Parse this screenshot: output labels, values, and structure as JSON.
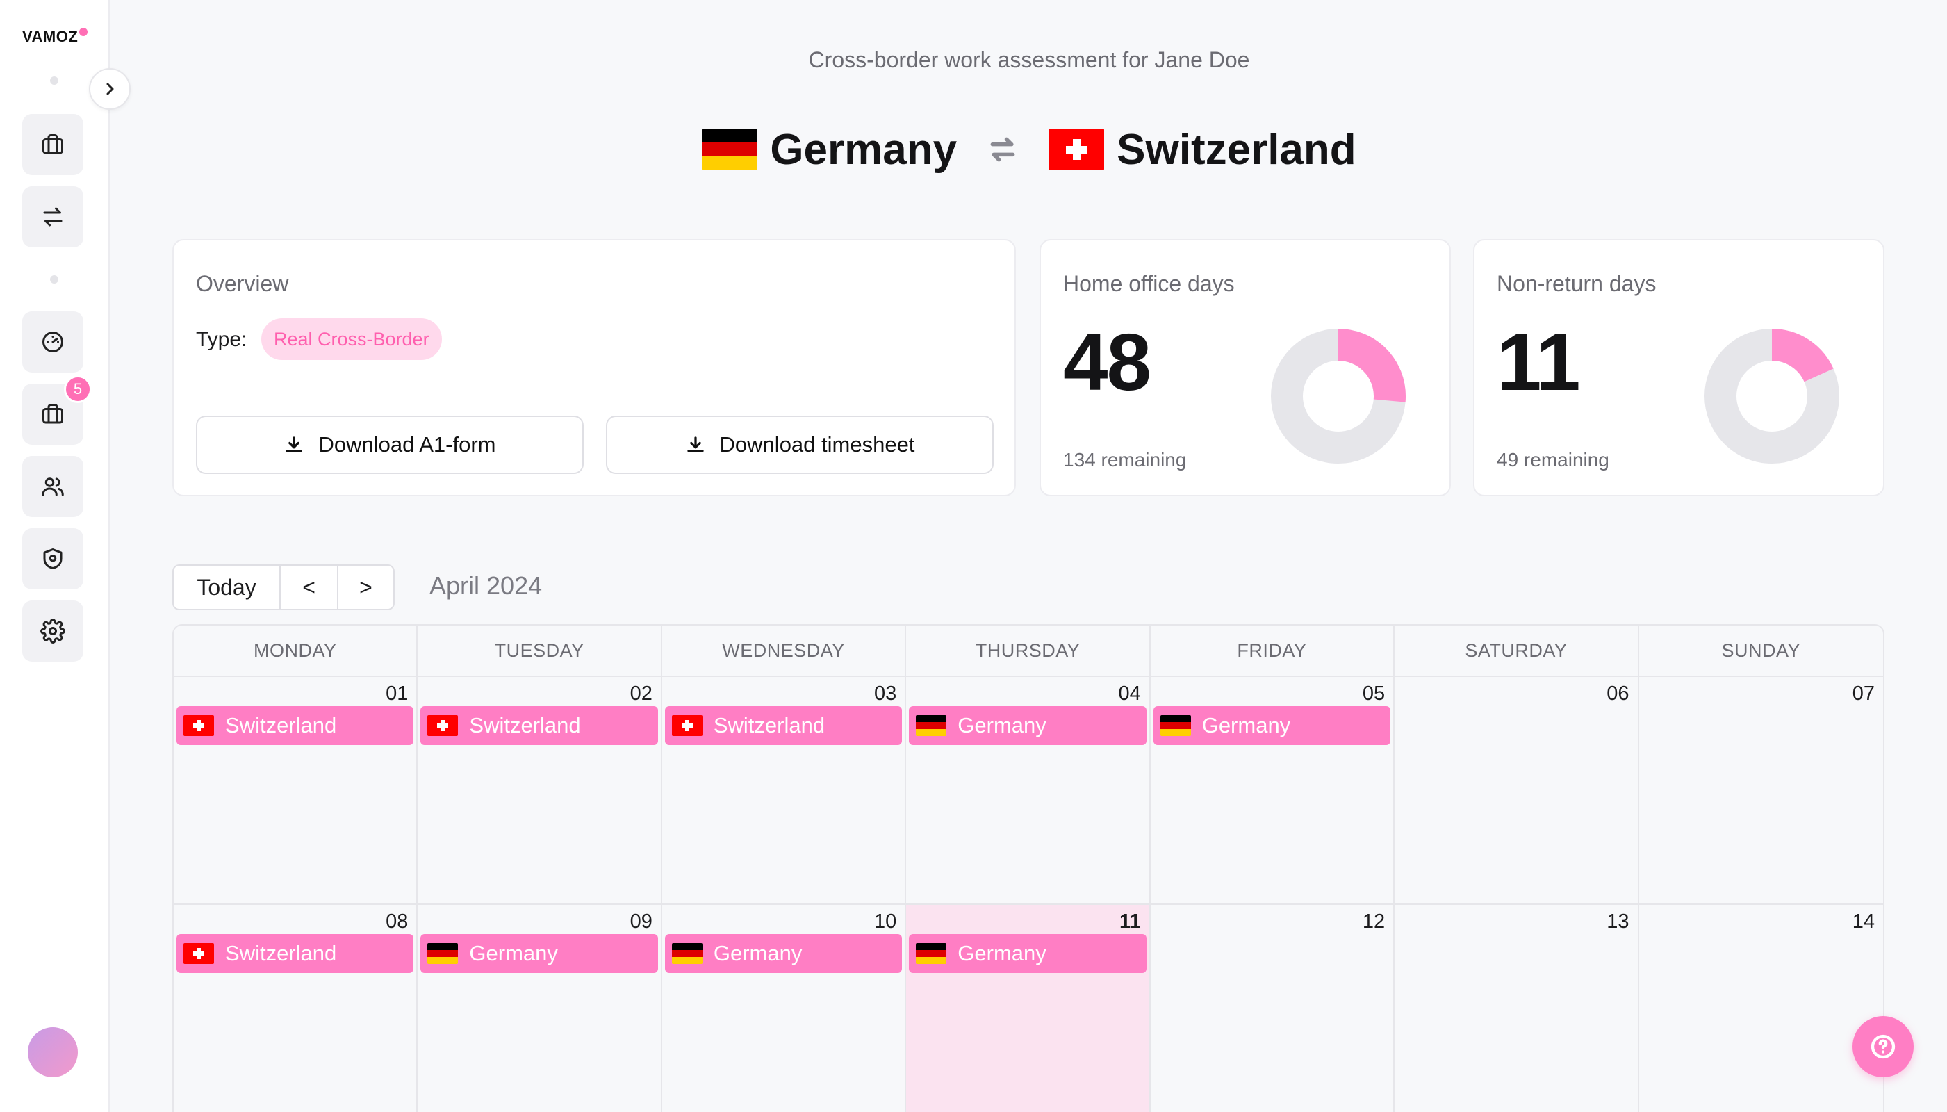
{
  "app": {
    "logo_text": "VAMOZ"
  },
  "sidebar": {
    "notification_count": "5",
    "items": [
      {
        "icon": "briefcase-icon"
      },
      {
        "icon": "swap-icon"
      },
      {
        "icon": "dashboard-icon"
      },
      {
        "icon": "briefcase-icon"
      },
      {
        "icon": "users-icon"
      },
      {
        "icon": "shield-icon"
      },
      {
        "icon": "gear-icon"
      }
    ]
  },
  "header": {
    "subtitle": "Cross-border work assessment for Jane Doe",
    "from_country": "Germany",
    "to_country": "Switzerland"
  },
  "overview": {
    "title": "Overview",
    "type_label": "Type:",
    "type_value": "Real Cross-Border",
    "download_a1": "Download A1-form",
    "download_timesheet": "Download timesheet"
  },
  "home_office": {
    "title": "Home office days",
    "value": "48",
    "remaining": "134 remaining",
    "fraction_used": 0.264
  },
  "non_return": {
    "title": "Non-return days",
    "value": "11",
    "remaining": "49 remaining",
    "fraction_used": 0.183
  },
  "calendar": {
    "today_label": "Today",
    "prev_label": "<",
    "next_label": ">",
    "month_label": "April 2024",
    "weekdays": [
      "MONDAY",
      "TUESDAY",
      "WEDNESDAY",
      "THURSDAY",
      "FRIDAY",
      "SATURDAY",
      "SUNDAY"
    ],
    "days": [
      {
        "num": "01",
        "event": "Switzerland",
        "flag": "ch"
      },
      {
        "num": "02",
        "event": "Switzerland",
        "flag": "ch"
      },
      {
        "num": "03",
        "event": "Switzerland",
        "flag": "ch"
      },
      {
        "num": "04",
        "event": "Germany",
        "flag": "de"
      },
      {
        "num": "05",
        "event": "Germany",
        "flag": "de"
      },
      {
        "num": "06",
        "event": "",
        "flag": ""
      },
      {
        "num": "07",
        "event": "",
        "flag": ""
      },
      {
        "num": "08",
        "event": "Switzerland",
        "flag": "ch"
      },
      {
        "num": "09",
        "event": "Germany",
        "flag": "de"
      },
      {
        "num": "10",
        "event": "Germany",
        "flag": "de"
      },
      {
        "num": "11",
        "event": "Germany",
        "flag": "de",
        "today": true
      },
      {
        "num": "12",
        "event": "",
        "flag": ""
      },
      {
        "num": "13",
        "event": "",
        "flag": ""
      },
      {
        "num": "14",
        "event": "",
        "flag": ""
      }
    ]
  },
  "colors": {
    "accent": "#ff7ec4",
    "donut_track": "#e6e6ea",
    "de_black": "#000000",
    "de_red": "#dd0000",
    "de_gold": "#ffce00",
    "ch_red": "#ff0000"
  }
}
